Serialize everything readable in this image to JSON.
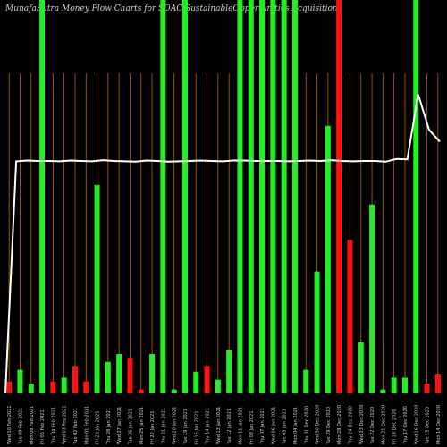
{
  "title": "MunafaSutra  Money Flow  Charts for SOAC                    SustainableOpportunities Acquisition",
  "chart_data": {
    "type": "bar",
    "series": [
      {
        "name": "",
        "values": [
          {
            "x": "Wed 10 Feb 2021",
            "v": 3,
            "dir": "down"
          },
          {
            "x": "Tue 09 Feb 2021",
            "v": 6,
            "dir": "up"
          },
          {
            "x": "Mon 08 Feb 2021",
            "v": 2.5,
            "dir": "up"
          },
          {
            "x": "Fri 05 Feb 2021",
            "v": 100,
            "dir": "up"
          },
          {
            "x": "Thu 04 Feb 2021",
            "v": 3,
            "dir": "down"
          },
          {
            "x": "Wed 03 Feb 2021",
            "v": 4,
            "dir": "up"
          },
          {
            "x": "Tue 02 Feb 2021",
            "v": 7,
            "dir": "down"
          },
          {
            "x": "Mon 01 Feb 2021",
            "v": 3,
            "dir": "down"
          },
          {
            "x": "Fri 29 Jan 2021",
            "v": 53,
            "dir": "up"
          },
          {
            "x": "Thu 28 Jan 2021",
            "v": 8,
            "dir": "up"
          },
          {
            "x": "Wed 27 Jan 2021",
            "v": 10,
            "dir": "up"
          },
          {
            "x": "Tue 26 Jan 2021",
            "v": 9,
            "dir": "down"
          },
          {
            "x": "Mon 25 Jan 2021",
            "v": 1,
            "dir": "down"
          },
          {
            "x": "Fri 22 Jan 2021",
            "v": 10,
            "dir": "up"
          },
          {
            "x": "Thu 21 Jan 2021",
            "v": 100,
            "dir": "up"
          },
          {
            "x": "Wed 20 Jan 2021",
            "v": 1,
            "dir": "up"
          },
          {
            "x": "Tue 19 Jan 2021",
            "v": 100,
            "dir": "up"
          },
          {
            "x": "Fri 15 Jan 2021",
            "v": 5.5,
            "dir": "up"
          },
          {
            "x": "Thu 14 Jan 2021",
            "v": 7,
            "dir": "down"
          },
          {
            "x": "Wed 13 Jan 2021",
            "v": 3.5,
            "dir": "up"
          },
          {
            "x": "Tue 12 Jan 2021",
            "v": 11,
            "dir": "up"
          },
          {
            "x": "Mon 11 Jan 2021",
            "v": 100,
            "dir": "up"
          },
          {
            "x": "Fri 08 Jan 2021",
            "v": 100,
            "dir": "up"
          },
          {
            "x": "Thu 07 Jan 2021",
            "v": 100,
            "dir": "up"
          },
          {
            "x": "Wed 06 Jan 2021",
            "v": 100,
            "dir": "up"
          },
          {
            "x": "Tue 05 Jan 2021",
            "v": 100,
            "dir": "up"
          },
          {
            "x": "Mon 04 Jan 2021",
            "v": 100,
            "dir": "up"
          },
          {
            "x": "Thu 31 Dec 2020",
            "v": 6,
            "dir": "up"
          },
          {
            "x": "Wed 30 Dec 2020",
            "v": 31,
            "dir": "up"
          },
          {
            "x": "Tue 29 Dec 2020",
            "v": 68,
            "dir": "up"
          },
          {
            "x": "Mon 28 Dec 2020",
            "v": 100,
            "dir": "down"
          },
          {
            "x": "Thu 24 Dec 2020",
            "v": 39,
            "dir": "down"
          },
          {
            "x": "Wed 23 Dec 2020",
            "v": 13,
            "dir": "up"
          },
          {
            "x": "Tue 22 Dec 2020",
            "v": 48,
            "dir": "up"
          },
          {
            "x": "Mon 21 Dec 2020",
            "v": 1,
            "dir": "up"
          },
          {
            "x": "Fri 18 Dec 2020",
            "v": 4,
            "dir": "up"
          },
          {
            "x": "Thu 17 Dec 2020",
            "v": 4,
            "dir": "up"
          },
          {
            "x": "Wed 16 Dec 2020",
            "v": 100,
            "dir": "up"
          },
          {
            "x": "Tue 15 Dec 2020",
            "v": 2.5,
            "dir": "down"
          },
          {
            "x": "Mon 14 Dec 2020",
            "v": 5,
            "dir": "down"
          }
        ]
      },
      {
        "name": "",
        "type": "line",
        "values": [
          0,
          59,
          59,
          59,
          59,
          59,
          59,
          59,
          59,
          59,
          59,
          59,
          59,
          59,
          59,
          59,
          59,
          59,
          59,
          59,
          59,
          59,
          59,
          59,
          59,
          59,
          59,
          59,
          59,
          59,
          59,
          59,
          59,
          59,
          59,
          59,
          59,
          59,
          59,
          59,
          59,
          59,
          59,
          59,
          59,
          59,
          59,
          59,
          59,
          59,
          59,
          59,
          59,
          59,
          59,
          59,
          59,
          59,
          59,
          59,
          59,
          59,
          59,
          59,
          59,
          59,
          59,
          59,
          59,
          59,
          59,
          59,
          59,
          59,
          59,
          59,
          59,
          59,
          59,
          59,
          59,
          59,
          59,
          59,
          59,
          59,
          59,
          59,
          59,
          59,
          59,
          59,
          59,
          59,
          59,
          59,
          59,
          59,
          59,
          59,
          59,
          59,
          59,
          59,
          59,
          59,
          59,
          59,
          59,
          59,
          59,
          59,
          59,
          59,
          59,
          59,
          59,
          59,
          59,
          59,
          59,
          59,
          59,
          59,
          59,
          59,
          59,
          59,
          59,
          59,
          59,
          59,
          59,
          59,
          59,
          59,
          59,
          59,
          59,
          59,
          59,
          59,
          59,
          59,
          59,
          59,
          59,
          59,
          59,
          59,
          59,
          59,
          59,
          59,
          59,
          59,
          59,
          59,
          59,
          59,
          59,
          59,
          59,
          59,
          59,
          59,
          59,
          59,
          59,
          59,
          59,
          59,
          59,
          59,
          59,
          59,
          59,
          59,
          59,
          59,
          59,
          59,
          59,
          59,
          59,
          59,
          59,
          59,
          59,
          59,
          59,
          59,
          59,
          59,
          59,
          59,
          59,
          59,
          59,
          59,
          59,
          59,
          59,
          59,
          59,
          59,
          59,
          59,
          59,
          59,
          59,
          59,
          59,
          59,
          59,
          59,
          59,
          59,
          59,
          59,
          59,
          59,
          59,
          59,
          59,
          59,
          59,
          59,
          59,
          59,
          59,
          59,
          59,
          59,
          59,
          59,
          59,
          59,
          59,
          59,
          59,
          59,
          59,
          59,
          59,
          59,
          59,
          59,
          59,
          59,
          59,
          59,
          59,
          59,
          59,
          59,
          59,
          59,
          59,
          59,
          59,
          59,
          59,
          59,
          59,
          59,
          59,
          59,
          59,
          59,
          59,
          59,
          59,
          59,
          59,
          59,
          59,
          59,
          59,
          59
        ]
      }
    ],
    "line_points": [
      0,
      59,
      59,
      59,
      59,
      59,
      59,
      59,
      59,
      59,
      59,
      59,
      59,
      59,
      59,
      59,
      59,
      59,
      59,
      59,
      59,
      59,
      59,
      59,
      59,
      59,
      59,
      59,
      59,
      59,
      59,
      59,
      59,
      59,
      59,
      59,
      59,
      59,
      59,
      59,
      59,
      59,
      59,
      59,
      59,
      59,
      59,
      59,
      59,
      59,
      59,
      59,
      59,
      59,
      59,
      59,
      59,
      59,
      59,
      59,
      59,
      59,
      59,
      59,
      59,
      59,
      59,
      59,
      59,
      59,
      59,
      59,
      59,
      59,
      59,
      59,
      59,
      59,
      59,
      59,
      59,
      59,
      59,
      59,
      59,
      59,
      59,
      59,
      59,
      59,
      59,
      59,
      59,
      59,
      59,
      59,
      59,
      59,
      59,
      59
    ],
    "line_values": [
      0,
      59,
      59.2,
      59.1,
      59.1,
      59.0,
      59.2,
      59.1,
      59.0,
      59.3,
      59.1,
      59.0,
      58.9,
      59.2,
      59.1,
      58.9,
      59.0,
      59.1,
      59.2,
      59.1,
      59.0,
      59.2,
      59.2,
      59.1,
      59.1,
      59.1,
      59.0,
      59.1,
      59.2,
      59.1,
      59.3,
      59.1,
      59.0,
      59.1,
      59.1,
      58.9,
      59.6,
      59.5,
      76,
      67,
      64
    ],
    "line_color": "#ffffff",
    "up_color": "#22ee22",
    "down_color": "#ff1111",
    "grid_color": "#b86a00",
    "ylim": [
      0,
      100
    ],
    "grid": true
  }
}
